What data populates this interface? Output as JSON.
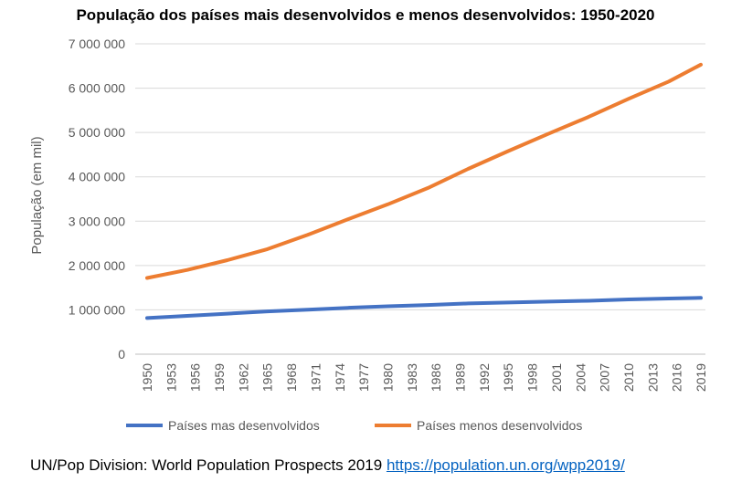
{
  "chart_data": {
    "type": "line",
    "title": "População dos países mais desenvolvidos e menos desenvolvidos: 1950-2020",
    "ylabel": "População (em mil)",
    "xlabel": "",
    "ylim": [
      0,
      7000000
    ],
    "y_ticks": [
      0,
      1000000,
      2000000,
      3000000,
      4000000,
      5000000,
      6000000,
      7000000
    ],
    "y_tick_labels": [
      "0",
      "1 000 000",
      "2 000 000",
      "3 000 000",
      "4 000 000",
      "5 000 000",
      "6 000 000",
      "7 000 000"
    ],
    "x_tick_labels": [
      "1950",
      "1953",
      "1956",
      "1959",
      "1962",
      "1965",
      "1968",
      "1971",
      "1974",
      "1977",
      "1980",
      "1983",
      "1986",
      "1989",
      "1992",
      "1995",
      "1998",
      "2001",
      "2004",
      "2007",
      "2010",
      "2013",
      "2016",
      "2019"
    ],
    "grid": "horizontal",
    "legend_position": "bottom",
    "categories": [
      1950,
      1955,
      1960,
      1965,
      1970,
      1975,
      1980,
      1985,
      1990,
      1995,
      2000,
      2005,
      2010,
      2015,
      2020
    ],
    "series": [
      {
        "name": "Países mas desenvolvidos",
        "color": "#4472c4",
        "values": [
          815000,
          865000,
          915000,
          965000,
          1005000,
          1045000,
          1080000,
          1110000,
          1145000,
          1165000,
          1185000,
          1205000,
          1235000,
          1255000,
          1270000
        ]
      },
      {
        "name": "Países menos desenvolvidos",
        "color": "#ed7d31",
        "values": [
          1720000,
          1900000,
          2120000,
          2370000,
          2690000,
          3040000,
          3380000,
          3750000,
          4180000,
          4580000,
          4970000,
          5350000,
          5760000,
          6150000,
          6530000
        ]
      }
    ]
  },
  "source": {
    "text": "UN/Pop Division: World Population Prospects 2019 ",
    "link_text": "https://population.un.org/wpp2019/"
  }
}
